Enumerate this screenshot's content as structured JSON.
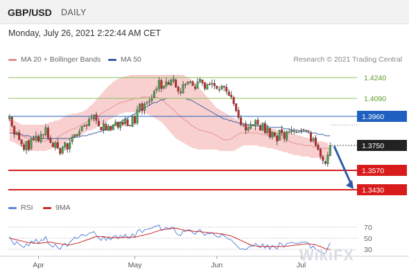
{
  "header": {
    "symbol": "GBP/USD",
    "period": "DAILY",
    "timestamp": "Monday, July 26, 2021 2:22:44 AM CET"
  },
  "legend": {
    "bollinger_label": "MA 20 + Bollinger Bands",
    "ma50_label": "MA 50",
    "credit": "Research © 2021 Trading Central",
    "rsi_label": "RSI",
    "rsi_ma_label": "9MA"
  },
  "watermark": "WikiFX",
  "colors": {
    "up": "#4b9e4b",
    "down": "#c62828",
    "bollinger": "#f5b0b0",
    "ma20": "#e58f8f",
    "ma50": "#3a5d9c",
    "resistance": "#88c057",
    "pivot": "#1f5fbf",
    "support": "#d81b1b",
    "current": "#222222",
    "arrow": "#2f5aa8",
    "rsi": "#5b86d9",
    "rsi_ma": "#c62828"
  },
  "chart_data": {
    "type": "candlestick",
    "ylim": [
      1.335,
      1.43
    ],
    "levels": [
      {
        "label": "1.4240",
        "value": 1.424,
        "kind": "resistance"
      },
      {
        "label": "1.4090",
        "value": 1.409,
        "kind": "resistance"
      },
      {
        "label": "1.3960",
        "value": 1.396,
        "kind": "pivot"
      },
      {
        "label": "1.3750",
        "value": 1.375,
        "kind": "current"
      },
      {
        "label": "1.3570",
        "value": 1.357,
        "kind": "support"
      },
      {
        "label": "1.3430",
        "value": 1.343,
        "kind": "support"
      }
    ],
    "x_ticks": [
      "Apr",
      "May",
      "Jun",
      "Jul"
    ],
    "x_tick_index": [
      12,
      52,
      86,
      121
    ],
    "closes": [
      1.396,
      1.389,
      1.383,
      1.384,
      1.379,
      1.376,
      1.372,
      1.378,
      1.372,
      1.38,
      1.379,
      1.382,
      1.378,
      1.383,
      1.383,
      1.388,
      1.38,
      1.377,
      1.374,
      1.377,
      1.373,
      1.369,
      1.374,
      1.377,
      1.372,
      1.377,
      1.381,
      1.383,
      1.382,
      1.385,
      1.389,
      1.389,
      1.389,
      1.394,
      1.395,
      1.397,
      1.393,
      1.389,
      1.386,
      1.391,
      1.386,
      1.389,
      1.386,
      1.39,
      1.392,
      1.388,
      1.392,
      1.39,
      1.394,
      1.389,
      1.389,
      1.396,
      1.391,
      1.401,
      1.405,
      1.4,
      1.405,
      1.406,
      1.407,
      1.409,
      1.414,
      1.416,
      1.422,
      1.416,
      1.418,
      1.421,
      1.419,
      1.422,
      1.423,
      1.417,
      1.414,
      1.413,
      1.419,
      1.419,
      1.421,
      1.421,
      1.418,
      1.416,
      1.421,
      1.423,
      1.42,
      1.416,
      1.419,
      1.419,
      1.42,
      1.418,
      1.416,
      1.415,
      1.418,
      1.417,
      1.414,
      1.411,
      1.41,
      1.405,
      1.4,
      1.395,
      1.39,
      1.39,
      1.386,
      1.388,
      1.39,
      1.389,
      1.393,
      1.39,
      1.386,
      1.391,
      1.384,
      1.388,
      1.381,
      1.385,
      1.382,
      1.378,
      1.386,
      1.384,
      1.38,
      1.385,
      1.385,
      1.386,
      1.385,
      1.385,
      1.385,
      1.386,
      1.386,
      1.386,
      1.385,
      1.378,
      1.38,
      1.375,
      1.372,
      1.367,
      1.364,
      1.362,
      1.368,
      1.375
    ],
    "ma20": [
      1.386,
      1.386,
      1.385,
      1.384,
      1.383,
      1.382,
      1.381,
      1.381,
      1.38,
      1.38,
      1.379,
      1.379,
      1.379,
      1.378,
      1.378,
      1.378,
      1.379,
      1.38,
      1.38,
      1.38,
      1.381,
      1.382,
      1.383,
      1.384,
      1.385,
      1.386,
      1.387,
      1.387,
      1.388,
      1.389,
      1.39,
      1.391,
      1.392,
      1.393,
      1.393,
      1.394,
      1.395,
      1.396,
      1.398,
      1.399,
      1.4,
      1.401,
      1.402,
      1.403,
      1.404,
      1.405,
      1.406,
      1.406,
      1.407,
      1.407,
      1.408,
      1.408,
      1.409,
      1.409,
      1.409,
      1.41,
      1.41,
      1.41,
      1.41,
      1.41,
      1.41,
      1.41,
      1.409,
      1.408,
      1.407,
      1.405,
      1.404,
      1.402,
      1.401,
      1.399,
      1.397,
      1.396,
      1.394,
      1.393,
      1.392,
      1.39,
      1.389,
      1.388,
      1.387,
      1.386,
      1.386,
      1.385,
      1.385,
      1.384,
      1.384,
      1.383,
      1.382,
      1.381,
      1.38,
      1.379,
      1.379,
      1.379,
      1.38,
      1.381,
      1.382,
      1.383,
      1.384,
      1.384,
      1.384,
      1.384,
      1.384,
      1.384,
      1.384,
      1.384,
      1.383,
      1.383,
      1.383,
      1.382,
      1.382,
      1.382,
      1.381,
      1.381,
      1.38,
      1.38,
      1.379,
      1.379,
      1.378,
      1.377,
      1.377,
      1.376,
      1.376,
      1.376,
      1.375,
      1.375,
      1.375,
      1.375,
      1.374,
      1.374,
      1.374,
      1.373,
      1.373,
      1.373,
      1.373,
      1.372
    ],
    "bb_upper": [
      1.394,
      1.393,
      1.393,
      1.392,
      1.391,
      1.39,
      1.39,
      1.39,
      1.39,
      1.39,
      1.39,
      1.39,
      1.39,
      1.39,
      1.39,
      1.39,
      1.391,
      1.392,
      1.392,
      1.393,
      1.393,
      1.394,
      1.395,
      1.396,
      1.397,
      1.397,
      1.398,
      1.398,
      1.398,
      1.399,
      1.399,
      1.4,
      1.401,
      1.403,
      1.404,
      1.406,
      1.408,
      1.41,
      1.412,
      1.414,
      1.416,
      1.418,
      1.419,
      1.421,
      1.422,
      1.423,
      1.424,
      1.424,
      1.425,
      1.425,
      1.426,
      1.426,
      1.426,
      1.426,
      1.426,
      1.426,
      1.426,
      1.426,
      1.426,
      1.426,
      1.426,
      1.426,
      1.426,
      1.426,
      1.426,
      1.426,
      1.426,
      1.426,
      1.426,
      1.426,
      1.426,
      1.426,
      1.426,
      1.425,
      1.424,
      1.423,
      1.422,
      1.42,
      1.418,
      1.416,
      1.414,
      1.412,
      1.41,
      1.408,
      1.406,
      1.404,
      1.402,
      1.401,
      1.4,
      1.399,
      1.398,
      1.397,
      1.396,
      1.395,
      1.394,
      1.393,
      1.392,
      1.391,
      1.39,
      1.389,
      1.389,
      1.388,
      1.388,
      1.388,
      1.388,
      1.388,
      1.388,
      1.388,
      1.387,
      1.387,
      1.387,
      1.386,
      1.386,
      1.385,
      1.385,
      1.384,
      1.384,
      1.384,
      1.383,
      1.383,
      1.382,
      1.382,
      1.381,
      1.381,
      1.38,
      1.38,
      1.379,
      1.379,
      1.378,
      1.378,
      1.378,
      1.377,
      1.377
    ],
    "bb_lower": [
      1.378,
      1.378,
      1.377,
      1.376,
      1.375,
      1.374,
      1.373,
      1.372,
      1.371,
      1.371,
      1.371,
      1.371,
      1.371,
      1.371,
      1.371,
      1.371,
      1.372,
      1.372,
      1.373,
      1.373,
      1.374,
      1.375,
      1.376,
      1.377,
      1.378,
      1.378,
      1.379,
      1.38,
      1.381,
      1.382,
      1.383,
      1.384,
      1.385,
      1.386,
      1.386,
      1.387,
      1.388,
      1.389,
      1.39,
      1.391,
      1.392,
      1.393,
      1.394,
      1.395,
      1.396,
      1.397,
      1.398,
      1.398,
      1.399,
      1.399,
      1.399,
      1.399,
      1.399,
      1.399,
      1.399,
      1.399,
      1.398,
      1.398,
      1.397,
      1.396,
      1.395,
      1.394,
      1.393,
      1.392,
      1.39,
      1.388,
      1.386,
      1.384,
      1.382,
      1.38,
      1.379,
      1.378,
      1.377,
      1.376,
      1.375,
      1.374,
      1.373,
      1.373,
      1.372,
      1.372,
      1.372,
      1.372,
      1.372,
      1.372,
      1.372,
      1.372,
      1.372,
      1.371,
      1.371,
      1.371,
      1.371,
      1.371,
      1.371,
      1.371,
      1.372,
      1.373,
      1.374,
      1.375,
      1.375,
      1.375,
      1.375,
      1.375,
      1.375,
      1.375,
      1.374,
      1.374,
      1.374,
      1.373,
      1.373,
      1.373,
      1.372,
      1.372,
      1.371,
      1.371,
      1.37,
      1.37,
      1.369,
      1.369,
      1.368,
      1.368,
      1.368,
      1.367,
      1.367,
      1.367,
      1.367,
      1.366,
      1.366,
      1.366,
      1.366,
      1.365,
      1.365,
      1.365,
      1.365,
      1.365
    ],
    "ma50": [
      1.384,
      1.384,
      1.384,
      1.383,
      1.383,
      1.383,
      1.382,
      1.382,
      1.382,
      1.381,
      1.381,
      1.381,
      1.38,
      1.38,
      1.38,
      1.38,
      1.38,
      1.38,
      1.38,
      1.38,
      1.38,
      1.38,
      1.38,
      1.38,
      1.38,
      1.38,
      1.381,
      1.381,
      1.381,
      1.381,
      1.382,
      1.382,
      1.382,
      1.383,
      1.383,
      1.384,
      1.384,
      1.385,
      1.385,
      1.386,
      1.386,
      1.387,
      1.388,
      1.389,
      1.39,
      1.391,
      1.392,
      1.393,
      1.394,
      1.395,
      1.396,
      1.397,
      1.398,
      1.399,
      1.4,
      1.401,
      1.402,
      1.403,
      1.404,
      1.405,
      1.406,
      1.406,
      1.407,
      1.408,
      1.408,
      1.409,
      1.409,
      1.409,
      1.409,
      1.409,
      1.409,
      1.409,
      1.409,
      1.409,
      1.408,
      1.408,
      1.407,
      1.406,
      1.405,
      1.404,
      1.403,
      1.402,
      1.401,
      1.4,
      1.399,
      1.398,
      1.397,
      1.396,
      1.395,
      1.394,
      1.394,
      1.393,
      1.393,
      1.392,
      1.392,
      1.391,
      1.391,
      1.391,
      1.39,
      1.39,
      1.39,
      1.39,
      1.389,
      1.389,
      1.389,
      1.389,
      1.389,
      1.389,
      1.388,
      1.388,
      1.388,
      1.388,
      1.388,
      1.388,
      1.387,
      1.387,
      1.387,
      1.386,
      1.386,
      1.386,
      1.386,
      1.385,
      1.385,
      1.385,
      1.384,
      1.384,
      1.384,
      1.384,
      1.383,
      1.383,
      1.383,
      1.382,
      1.382,
      1.382
    ],
    "rsi": {
      "ylim": [
        20,
        80
      ],
      "ticks": [
        {
          "label": "70",
          "value": 70
        },
        {
          "label": "50",
          "value": 50
        },
        {
          "label": "30",
          "value": 30
        }
      ],
      "rsi": [
        53,
        45,
        38,
        44,
        39,
        36,
        33,
        40,
        36,
        45,
        42,
        48,
        40,
        47,
        46,
        53,
        41,
        37,
        34,
        39,
        33,
        30,
        37,
        41,
        35,
        43,
        47,
        52,
        49,
        53,
        57,
        55,
        55,
        59,
        60,
        62,
        55,
        50,
        46,
        53,
        46,
        51,
        47,
        53,
        55,
        49,
        55,
        52,
        57,
        50,
        50,
        58,
        52,
        63,
        66,
        60,
        65,
        66,
        67,
        68,
        71,
        72,
        74,
        64,
        66,
        70,
        66,
        69,
        70,
        60,
        56,
        55,
        63,
        62,
        65,
        65,
        60,
        57,
        63,
        66,
        60,
        55,
        59,
        58,
        60,
        56,
        53,
        52,
        57,
        55,
        51,
        48,
        47,
        42,
        38,
        33,
        30,
        31,
        29,
        33,
        36,
        35,
        41,
        37,
        33,
        40,
        32,
        38,
        30,
        37,
        34,
        30,
        42,
        39,
        34,
        41,
        41,
        43,
        41,
        41,
        41,
        43,
        43,
        43,
        41,
        32,
        36,
        30,
        28,
        25,
        23,
        22,
        33,
        42
      ],
      "ma": [
        50,
        49,
        48,
        47,
        46,
        45,
        44,
        43,
        42,
        42,
        41,
        41,
        41,
        41,
        42,
        42,
        43,
        43,
        42,
        41,
        41,
        40,
        39,
        39,
        38,
        38,
        39,
        40,
        41,
        42,
        44,
        45,
        47,
        48,
        50,
        52,
        53,
        53,
        53,
        53,
        52,
        52,
        51,
        51,
        51,
        51,
        51,
        51,
        52,
        52,
        52,
        52,
        52,
        53,
        54,
        55,
        56,
        57,
        58,
        59,
        61,
        62,
        64,
        65,
        66,
        66,
        67,
        67,
        68,
        68,
        67,
        66,
        65,
        64,
        64,
        63,
        63,
        62,
        62,
        62,
        61,
        61,
        60,
        60,
        60,
        59,
        59,
        58,
        58,
        57,
        56,
        55,
        54,
        52,
        50,
        48,
        46,
        44,
        42,
        40,
        38,
        37,
        36,
        35,
        35,
        35,
        35,
        35,
        35,
        35,
        35,
        35,
        35,
        35,
        35,
        36,
        36,
        37,
        37,
        38,
        38,
        39,
        39,
        40,
        40,
        39,
        39,
        38,
        36,
        35,
        33,
        31,
        30,
        30
      ]
    }
  }
}
